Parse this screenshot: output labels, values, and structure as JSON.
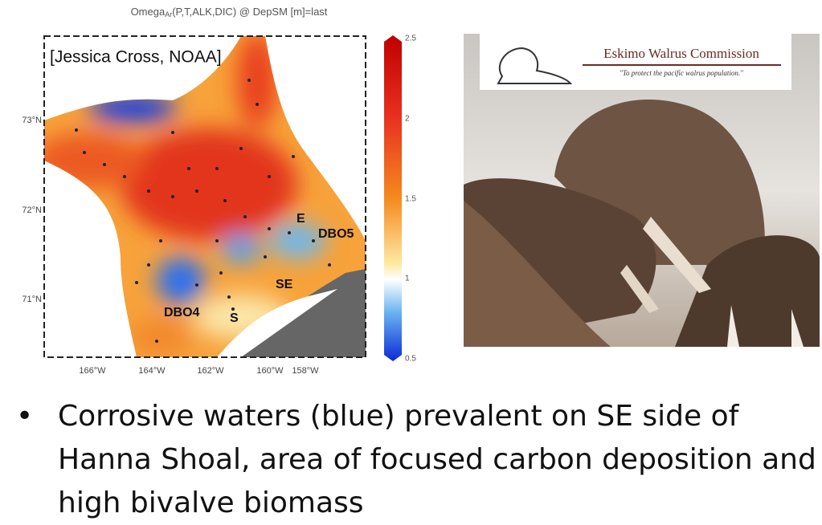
{
  "map": {
    "title_main": "Omega",
    "title_sub": "Ar",
    "title_rest": "(P,T,ALK,DIC) @ DepSM [m]=last",
    "credit": "[Jessica Cross, NOAA]",
    "lat_labels": [
      "73°N",
      "72°N",
      "71°N"
    ],
    "lon_labels": [
      "166°W",
      "164°W",
      "162°W",
      "160°W",
      "158°W"
    ],
    "colorbar_labels": [
      "2.5",
      "2",
      "1.5",
      "1",
      "0.5"
    ],
    "annotations": [
      "E",
      "DBO5",
      "SE",
      "DBO4",
      "S"
    ]
  },
  "photo": {
    "org": "Eskimo Walrus Commission",
    "motto": "\"To protect the pacific walrus population.\""
  },
  "bullet": "Corrosive waters (blue) prevalent on SE side of Hanna Shoal, area of focused carbon deposition and high bivalve biomass"
}
